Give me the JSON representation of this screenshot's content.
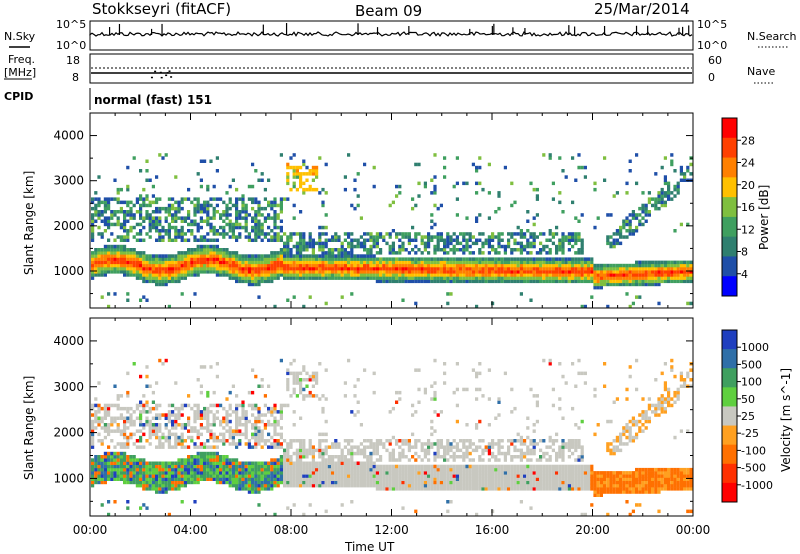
{
  "header": {
    "station": "Stokkseyri (fitACF)",
    "beam": "Beam 09",
    "date": "25/Mar/2014"
  },
  "top_panels": {
    "nsky": {
      "label": "N.Sky",
      "ticks": [
        "10^5",
        "10^0"
      ]
    },
    "nsearch": {
      "label": "N.Search",
      "ticks": [
        "10^5",
        "10^0"
      ]
    },
    "freq": {
      "label_line1": "Freq.",
      "label_line2": "[MHz]",
      "ticks": [
        "18",
        "8"
      ]
    },
    "nave": {
      "label": "Nave",
      "ticks": [
        "60",
        "0"
      ]
    },
    "cpid": {
      "label": "CPID",
      "value": "normal (fast) 151"
    }
  },
  "colors": {
    "power_scale": [
      "#0000ff",
      "#1f4fa8",
      "#2f7f6f",
      "#3f9f5f",
      "#7fbf3f",
      "#ffc000",
      "#ff8000",
      "#ff4000",
      "#ff0000"
    ],
    "velocity_scale": [
      "#1f3fbf",
      "#2f6fa8",
      "#3f9f5f",
      "#5fcf3f",
      "#c8c8c0",
      "#ffa020",
      "#ff7000",
      "#ff3000",
      "#ff0000"
    ]
  },
  "chart_data": [
    {
      "type": "heatmap",
      "title": "",
      "quantity": "Power",
      "xlabel": "",
      "ylabel": "Slant Range [km]",
      "x_ticks": [
        "00:00",
        "04:00",
        "08:00",
        "12:00",
        "16:00",
        "20:00",
        "00:00"
      ],
      "y_ticks": [
        "1000",
        "2000",
        "3000",
        "4000"
      ],
      "ylim": [
        180,
        4500
      ],
      "colorbar_label": "Power [dB]",
      "colorbar_ticks": [
        "28",
        "24",
        "20",
        "16",
        "12",
        "8",
        "4"
      ]
    },
    {
      "type": "heatmap",
      "title": "",
      "quantity": "Velocity",
      "xlabel": "Time UT",
      "ylabel": "Slant Range [km]",
      "x_ticks": [
        "00:00",
        "04:00",
        "08:00",
        "12:00",
        "16:00",
        "20:00",
        "00:00"
      ],
      "y_ticks": [
        "1000",
        "2000",
        "3000",
        "4000"
      ],
      "ylim": [
        180,
        4500
      ],
      "colorbar_label": "Velocity [m s^-1]",
      "colorbar_ticks": [
        "1000",
        "500",
        "100",
        "50",
        "25",
        "-25",
        "-100",
        "-500",
        "-1000"
      ]
    }
  ]
}
